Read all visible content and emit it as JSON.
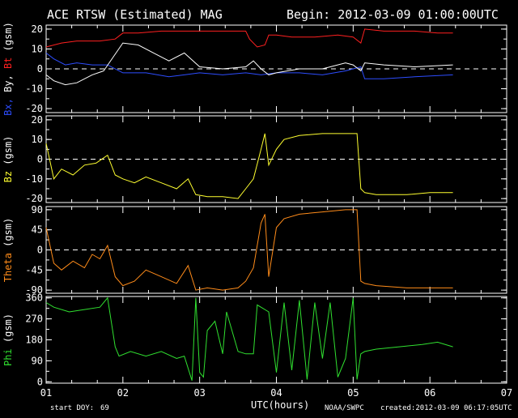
{
  "header": {
    "title": "ACE RTSW (Estimated) MAG",
    "begin": "Begin: 2012-03-09 01:00:00UTC"
  },
  "footer": {
    "start_doy_label": "start DOY:",
    "start_doy_value": "69",
    "xlabel": "UTC(hours)",
    "credit": "NOAA/SWPC",
    "created": "created:2012-03-09 06:17:05UTC"
  },
  "colors": {
    "bt": "#ff2020",
    "bx": "#2d4dff",
    "by": "#ffffff",
    "bz": "#ffff30",
    "theta": "#ff8c1a",
    "phi": "#30e030",
    "axis": "#ffffff",
    "background": "#000000"
  },
  "chart_data": [
    {
      "type": "line",
      "panel": "mag",
      "ylabel_parts": [
        {
          "text": "Bx,",
          "color": "#2d4dff"
        },
        {
          "text": " By,",
          "color": "#ffffff"
        },
        {
          "text": " Bt",
          "color": "#ff2020"
        },
        {
          "text": "  (gsm)",
          "color": "#ffffff"
        }
      ],
      "ylim": [
        -22,
        22
      ],
      "yticks": [
        "20",
        "10",
        "0",
        "-10",
        "-20"
      ],
      "ytick_values": [
        20,
        10,
        0,
        -10,
        -20
      ],
      "zero_line": true,
      "series": [
        {
          "color": "#ff2020",
          "x": [
            1.0,
            1.2,
            1.4,
            1.7,
            1.9,
            2.0,
            2.2,
            2.5,
            2.8,
            3.0,
            3.3,
            3.6,
            3.65,
            3.75,
            3.85,
            3.9,
            4.0,
            4.2,
            4.5,
            4.8,
            5.0,
            5.1,
            5.15,
            5.4,
            5.8,
            6.1,
            6.3
          ],
          "y": [
            11,
            13,
            14,
            14,
            15,
            18,
            18,
            19,
            19,
            19,
            19,
            19,
            15,
            11,
            12,
            17,
            17,
            16,
            16,
            17,
            16,
            13,
            20,
            19,
            19,
            18,
            18
          ]
        },
        {
          "color": "#2d4dff",
          "x": [
            1.0,
            1.1,
            1.25,
            1.4,
            1.6,
            1.8,
            2.0,
            2.3,
            2.6,
            2.8,
            3.0,
            3.3,
            3.6,
            3.8,
            4.0,
            4.3,
            4.6,
            4.9,
            5.0,
            5.1,
            5.15,
            5.4,
            5.8,
            6.3
          ],
          "y": [
            8,
            5,
            2,
            3,
            2,
            2,
            -2,
            -2,
            -4,
            -3,
            -2,
            -3,
            -2,
            -3,
            -2,
            -2,
            -3,
            -1,
            0,
            1,
            -5,
            -5,
            -4,
            -3
          ]
        },
        {
          "color": "#ffffff",
          "x": [
            1.0,
            1.1,
            1.25,
            1.4,
            1.6,
            1.75,
            2.0,
            2.2,
            2.4,
            2.6,
            2.8,
            3.0,
            3.3,
            3.6,
            3.7,
            3.8,
            3.9,
            4.0,
            4.3,
            4.6,
            4.9,
            5.0,
            5.1,
            5.15,
            5.4,
            5.8,
            6.3
          ],
          "y": [
            -3,
            -6,
            -8,
            -7,
            -3,
            -1,
            13,
            12,
            8,
            4,
            8,
            1,
            0,
            1,
            4,
            0,
            -3,
            -2,
            0,
            0,
            3,
            2,
            -1,
            3,
            2,
            1,
            2
          ]
        }
      ]
    },
    {
      "type": "line",
      "panel": "bz",
      "ylabel_parts": [
        {
          "text": "Bz",
          "color": "#ffff30"
        },
        {
          "text": "  (gsm)",
          "color": "#ffffff"
        }
      ],
      "ylim": [
        -22,
        22
      ],
      "yticks": [
        "20",
        "10",
        "0",
        "-10",
        "-20"
      ],
      "ytick_values": [
        20,
        10,
        0,
        -10,
        -20
      ],
      "zero_line": true,
      "series": [
        {
          "color": "#ffff30",
          "x": [
            1.0,
            1.1,
            1.2,
            1.35,
            1.5,
            1.65,
            1.8,
            1.9,
            2.0,
            2.15,
            2.3,
            2.5,
            2.7,
            2.85,
            2.95,
            3.1,
            3.3,
            3.5,
            3.6,
            3.7,
            3.8,
            3.85,
            3.9,
            4.0,
            4.1,
            4.3,
            4.6,
            4.9,
            5.05,
            5.1,
            5.15,
            5.3,
            5.7,
            6.0,
            6.3
          ],
          "y": [
            8,
            -10,
            -5,
            -8,
            -3,
            -2,
            2,
            -8,
            -10,
            -12,
            -9,
            -12,
            -15,
            -10,
            -18,
            -19,
            -19,
            -20,
            -15,
            -10,
            5,
            13,
            -3,
            5,
            10,
            12,
            13,
            13,
            13,
            -15,
            -17,
            -18,
            -18,
            -17,
            -17
          ]
        }
      ]
    },
    {
      "type": "line",
      "panel": "theta",
      "ylabel_parts": [
        {
          "text": "Theta",
          "color": "#ff8c1a"
        },
        {
          "text": "  (gsm)",
          "color": "#ffffff"
        }
      ],
      "ylim": [
        -97,
        97
      ],
      "yticks": [
        "90",
        "45",
        "0",
        "-45",
        "-90"
      ],
      "ytick_values": [
        90,
        45,
        0,
        -45,
        -90
      ],
      "zero_line": true,
      "series": [
        {
          "color": "#ff8c1a",
          "x": [
            1.0,
            1.1,
            1.2,
            1.35,
            1.5,
            1.6,
            1.7,
            1.8,
            1.9,
            2.0,
            2.15,
            2.3,
            2.5,
            2.7,
            2.85,
            2.95,
            3.1,
            3.3,
            3.5,
            3.6,
            3.7,
            3.8,
            3.85,
            3.9,
            4.0,
            4.1,
            4.3,
            4.6,
            4.9,
            5.05,
            5.1,
            5.15,
            5.3,
            5.7,
            6.0,
            6.3
          ],
          "y": [
            50,
            -30,
            -45,
            -25,
            -40,
            -10,
            -20,
            10,
            -60,
            -80,
            -70,
            -45,
            -60,
            -75,
            -35,
            -90,
            -85,
            -90,
            -85,
            -70,
            -40,
            60,
            80,
            -60,
            50,
            70,
            80,
            85,
            90,
            90,
            -70,
            -75,
            -80,
            -85,
            -85,
            -85
          ]
        }
      ]
    },
    {
      "type": "line",
      "panel": "phi",
      "ylabel_parts": [
        {
          "text": "Phi",
          "color": "#30e030"
        },
        {
          "text": "  (gsm)",
          "color": "#ffffff"
        }
      ],
      "ylim": [
        -6,
        366
      ],
      "yticks": [
        "360",
        "270",
        "180",
        "90",
        "0"
      ],
      "ytick_values": [
        360,
        270,
        180,
        90,
        0
      ],
      "zero_line": false,
      "series": [
        {
          "color": "#30e030",
          "x": [
            1.0,
            1.1,
            1.3,
            1.5,
            1.7,
            1.8,
            1.9,
            1.95,
            2.1,
            2.3,
            2.5,
            2.7,
            2.8,
            2.9,
            2.95,
            3.0,
            3.05,
            3.1,
            3.2,
            3.3,
            3.35,
            3.5,
            3.6,
            3.7,
            3.75,
            3.9,
            4.0,
            4.1,
            4.2,
            4.3,
            4.4,
            4.5,
            4.6,
            4.7,
            4.8,
            4.9,
            5.0,
            5.05,
            5.1,
            5.15,
            5.3,
            5.6,
            5.9,
            6.1,
            6.3
          ],
          "y": [
            340,
            320,
            300,
            310,
            320,
            360,
            150,
            110,
            130,
            110,
            130,
            100,
            110,
            5,
            360,
            40,
            20,
            220,
            260,
            120,
            300,
            130,
            120,
            120,
            330,
            300,
            40,
            340,
            50,
            350,
            10,
            340,
            100,
            340,
            20,
            100,
            360,
            10,
            120,
            130,
            140,
            150,
            160,
            170,
            150
          ]
        }
      ]
    }
  ],
  "xaxis": {
    "ticks": [
      "01",
      "02",
      "03",
      "04",
      "05",
      "06",
      "07"
    ],
    "tick_values": [
      1,
      2,
      3,
      4,
      5,
      6,
      7
    ],
    "xlim": [
      1,
      7
    ]
  }
}
